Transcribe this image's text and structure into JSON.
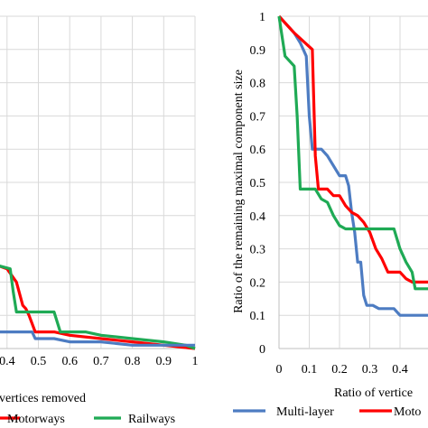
{
  "chart_data": [
    {
      "type": "line",
      "xlabel": "Ratio of vertices removed",
      "ylabel": "",
      "xlim": [
        0,
        1
      ],
      "ylim": [
        0,
        1
      ],
      "grid": true,
      "x_ticks": [
        "0.4",
        "0.5",
        "0.6",
        "0.7",
        "0.8",
        "0.9",
        "1"
      ],
      "legend_position": "bottom",
      "legend_labels": [
        "Motorways",
        "Railways"
      ],
      "series": [
        {
          "name": "Motorways",
          "color": "#ff0000",
          "points": [
            [
              0.37,
              0.25
            ],
            [
              0.4,
              0.24
            ],
            [
              0.43,
              0.2
            ],
            [
              0.45,
              0.13
            ],
            [
              0.46,
              0.12
            ],
            [
              0.47,
              0.1
            ],
            [
              0.49,
              0.05
            ],
            [
              0.55,
              0.05
            ],
            [
              0.6,
              0.04
            ],
            [
              0.7,
              0.03
            ],
            [
              0.8,
              0.02
            ],
            [
              0.9,
              0.01
            ],
            [
              1,
              0
            ]
          ]
        },
        {
          "name": "Railways",
          "color": "#1faa55",
          "points": [
            [
              0.37,
              0.25
            ],
            [
              0.41,
              0.24
            ],
            [
              0.42,
              0.17
            ],
            [
              0.43,
              0.11
            ],
            [
              0.55,
              0.11
            ],
            [
              0.57,
              0.05
            ],
            [
              0.65,
              0.05
            ],
            [
              0.7,
              0.04
            ],
            [
              0.8,
              0.03
            ],
            [
              0.9,
              0.02
            ],
            [
              0.97,
              0.01
            ],
            [
              1,
              0
            ]
          ]
        },
        {
          "name": "",
          "color": "#4d7cc2",
          "points": [
            [
              0.37,
              0.05
            ],
            [
              0.48,
              0.05
            ],
            [
              0.49,
              0.03
            ],
            [
              0.55,
              0.03
            ],
            [
              0.6,
              0.02
            ],
            [
              0.7,
              0.02
            ],
            [
              0.8,
              0.01
            ],
            [
              1,
              0.01
            ]
          ]
        }
      ]
    },
    {
      "type": "line",
      "xlabel": "Ratio of vertice",
      "ylabel": "Ratio of the remaining maximal component size",
      "xlim": [
        0,
        0.5
      ],
      "ylim": [
        0,
        1
      ],
      "grid": true,
      "x_ticks": [
        "0",
        "0.1",
        "0.2",
        "0.3",
        "0.4"
      ],
      "y_ticks": [
        "0",
        "0.1",
        "0.2",
        "0.3",
        "0.4",
        "0.5",
        "0.6",
        "0.7",
        "0.8",
        "0.9",
        "1"
      ],
      "legend_position": "bottom",
      "legend_labels": [
        "Multi-layer",
        "Moto"
      ],
      "series": [
        {
          "name": "Multi-layer",
          "color": "#4d7cc2",
          "points": [
            [
              0,
              1
            ],
            [
              0.05,
              0.95
            ],
            [
              0.07,
              0.92
            ],
            [
              0.09,
              0.88
            ],
            [
              0.1,
              0.7
            ],
            [
              0.11,
              0.6
            ],
            [
              0.14,
              0.6
            ],
            [
              0.16,
              0.58
            ],
            [
              0.18,
              0.55
            ],
            [
              0.2,
              0.52
            ],
            [
              0.22,
              0.52
            ],
            [
              0.23,
              0.49
            ],
            [
              0.24,
              0.41
            ],
            [
              0.25,
              0.35
            ],
            [
              0.26,
              0.26
            ],
            [
              0.27,
              0.26
            ],
            [
              0.28,
              0.16
            ],
            [
              0.29,
              0.13
            ],
            [
              0.31,
              0.13
            ],
            [
              0.33,
              0.12
            ],
            [
              0.38,
              0.12
            ],
            [
              0.4,
              0.1
            ],
            [
              0.5,
              0.1
            ]
          ]
        },
        {
          "name": "Moto",
          "color": "#ff0000",
          "points": [
            [
              0,
              1
            ],
            [
              0.05,
              0.95
            ],
            [
              0.11,
              0.9
            ],
            [
              0.12,
              0.58
            ],
            [
              0.13,
              0.48
            ],
            [
              0.16,
              0.48
            ],
            [
              0.18,
              0.46
            ],
            [
              0.2,
              0.46
            ],
            [
              0.22,
              0.43
            ],
            [
              0.24,
              0.41
            ],
            [
              0.26,
              0.4
            ],
            [
              0.28,
              0.38
            ],
            [
              0.3,
              0.35
            ],
            [
              0.32,
              0.3
            ],
            [
              0.34,
              0.27
            ],
            [
              0.36,
              0.23
            ],
            [
              0.4,
              0.23
            ],
            [
              0.42,
              0.21
            ],
            [
              0.44,
              0.2
            ],
            [
              0.5,
              0.2
            ]
          ]
        },
        {
          "name": "",
          "color": "#1faa55",
          "points": [
            [
              0,
              1
            ],
            [
              0.02,
              0.88
            ],
            [
              0.05,
              0.85
            ],
            [
              0.06,
              0.7
            ],
            [
              0.07,
              0.48
            ],
            [
              0.1,
              0.48
            ],
            [
              0.12,
              0.48
            ],
            [
              0.14,
              0.45
            ],
            [
              0.16,
              0.44
            ],
            [
              0.18,
              0.4
            ],
            [
              0.2,
              0.37
            ],
            [
              0.22,
              0.36
            ],
            [
              0.3,
              0.36
            ],
            [
              0.35,
              0.36
            ],
            [
              0.38,
              0.36
            ],
            [
              0.4,
              0.3
            ],
            [
              0.42,
              0.26
            ],
            [
              0.44,
              0.23
            ],
            [
              0.45,
              0.18
            ],
            [
              0.5,
              0.18
            ]
          ]
        }
      ]
    }
  ]
}
